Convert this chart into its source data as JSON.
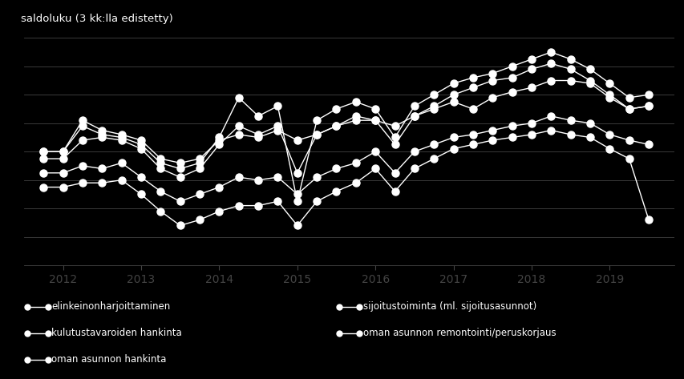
{
  "title": "saldoluku (3 kk:lla edistetty)",
  "background_color": "#000000",
  "text_color": "#ffffff",
  "line_color": "#ffffff",
  "grid_color": "#444444",
  "ylim": [
    -80,
    80
  ],
  "yticks": [
    -80,
    -60,
    -40,
    -20,
    0,
    20,
    40,
    60,
    80
  ],
  "xlabel_years": [
    2012,
    2013,
    2014,
    2015,
    2016,
    2017,
    2018,
    2019
  ],
  "series": [
    {
      "name": "elinkeinonharjoittaminen",
      "data": [
        [
          2011.75,
          0
        ],
        [
          2012.0,
          0
        ],
        [
          2012.25,
          22
        ],
        [
          2012.5,
          15
        ],
        [
          2012.75,
          12
        ],
        [
          2013.0,
          8
        ],
        [
          2013.25,
          -5
        ],
        [
          2013.5,
          -8
        ],
        [
          2013.75,
          -5
        ],
        [
          2014.0,
          8
        ],
        [
          2014.25,
          12
        ],
        [
          2014.5,
          10
        ],
        [
          2014.75,
          15
        ],
        [
          2015.0,
          8
        ],
        [
          2015.25,
          12
        ],
        [
          2015.5,
          18
        ],
        [
          2015.75,
          22
        ],
        [
          2016.0,
          22
        ],
        [
          2016.25,
          18
        ],
        [
          2016.5,
          25
        ],
        [
          2016.75,
          30
        ],
        [
          2017.0,
          35
        ],
        [
          2017.25,
          30
        ],
        [
          2017.5,
          38
        ],
        [
          2017.75,
          42
        ],
        [
          2018.0,
          45
        ],
        [
          2018.25,
          50
        ],
        [
          2018.5,
          50
        ],
        [
          2018.75,
          48
        ],
        [
          2019.0,
          38
        ],
        [
          2019.25,
          30
        ],
        [
          2019.5,
          32
        ]
      ]
    },
    {
      "name": "sijoitustoiminta (ml. sijoitusasunnot)",
      "data": [
        [
          2011.75,
          0
        ],
        [
          2012.0,
          0
        ],
        [
          2012.25,
          18
        ],
        [
          2012.5,
          12
        ],
        [
          2012.75,
          10
        ],
        [
          2013.0,
          5
        ],
        [
          2013.25,
          -8
        ],
        [
          2013.5,
          -12
        ],
        [
          2013.75,
          -8
        ],
        [
          2014.0,
          10
        ],
        [
          2014.25,
          38
        ],
        [
          2014.5,
          25
        ],
        [
          2014.75,
          32
        ],
        [
          2015.0,
          -35
        ],
        [
          2015.25,
          22
        ],
        [
          2015.5,
          30
        ],
        [
          2015.75,
          35
        ],
        [
          2016.0,
          30
        ],
        [
          2016.25,
          10
        ],
        [
          2016.5,
          32
        ],
        [
          2016.75,
          40
        ],
        [
          2017.0,
          48
        ],
        [
          2017.25,
          52
        ],
        [
          2017.5,
          55
        ],
        [
          2017.75,
          60
        ],
        [
          2018.0,
          65
        ],
        [
          2018.25,
          70
        ],
        [
          2018.5,
          65
        ],
        [
          2018.75,
          58
        ],
        [
          2019.0,
          48
        ],
        [
          2019.25,
          38
        ],
        [
          2019.5,
          40
        ]
      ]
    },
    {
      "name": "kulutustavaroiden hankinta",
      "data": [
        [
          2011.75,
          -15
        ],
        [
          2012.0,
          -15
        ],
        [
          2012.25,
          -10
        ],
        [
          2012.5,
          -12
        ],
        [
          2012.75,
          -8
        ],
        [
          2013.0,
          -18
        ],
        [
          2013.25,
          -28
        ],
        [
          2013.5,
          -35
        ],
        [
          2013.75,
          -30
        ],
        [
          2014.0,
          -25
        ],
        [
          2014.25,
          -18
        ],
        [
          2014.5,
          -20
        ],
        [
          2014.75,
          -18
        ],
        [
          2015.0,
          -30
        ],
        [
          2015.25,
          -18
        ],
        [
          2015.5,
          -12
        ],
        [
          2015.75,
          -8
        ],
        [
          2016.0,
          0
        ],
        [
          2016.25,
          -15
        ],
        [
          2016.5,
          0
        ],
        [
          2016.75,
          5
        ],
        [
          2017.0,
          10
        ],
        [
          2017.25,
          12
        ],
        [
          2017.5,
          15
        ],
        [
          2017.75,
          18
        ],
        [
          2018.0,
          20
        ],
        [
          2018.25,
          25
        ],
        [
          2018.5,
          22
        ],
        [
          2018.75,
          20
        ],
        [
          2019.0,
          12
        ],
        [
          2019.25,
          8
        ],
        [
          2019.5,
          5
        ]
      ]
    },
    {
      "name": "oman asunnon remontointi/peruskorjaus",
      "data": [
        [
          2011.75,
          -5
        ],
        [
          2012.0,
          -5
        ],
        [
          2012.25,
          8
        ],
        [
          2012.5,
          10
        ],
        [
          2012.75,
          8
        ],
        [
          2013.0,
          2
        ],
        [
          2013.25,
          -12
        ],
        [
          2013.5,
          -18
        ],
        [
          2013.75,
          -12
        ],
        [
          2014.0,
          5
        ],
        [
          2014.25,
          18
        ],
        [
          2014.5,
          12
        ],
        [
          2014.75,
          18
        ],
        [
          2015.0,
          -15
        ],
        [
          2015.25,
          12
        ],
        [
          2015.5,
          18
        ],
        [
          2015.75,
          25
        ],
        [
          2016.0,
          22
        ],
        [
          2016.25,
          5
        ],
        [
          2016.5,
          25
        ],
        [
          2016.75,
          32
        ],
        [
          2017.0,
          40
        ],
        [
          2017.25,
          45
        ],
        [
          2017.5,
          50
        ],
        [
          2017.75,
          52
        ],
        [
          2018.0,
          58
        ],
        [
          2018.25,
          62
        ],
        [
          2018.5,
          58
        ],
        [
          2018.75,
          50
        ],
        [
          2019.0,
          40
        ],
        [
          2019.25,
          30
        ],
        [
          2019.5,
          32
        ]
      ]
    },
    {
      "name": "oman asunnon hankinta",
      "data": [
        [
          2011.75,
          -25
        ],
        [
          2012.0,
          -25
        ],
        [
          2012.25,
          -22
        ],
        [
          2012.5,
          -22
        ],
        [
          2012.75,
          -20
        ],
        [
          2013.0,
          -30
        ],
        [
          2013.25,
          -42
        ],
        [
          2013.5,
          -52
        ],
        [
          2013.75,
          -48
        ],
        [
          2014.0,
          -42
        ],
        [
          2014.25,
          -38
        ],
        [
          2014.5,
          -38
        ],
        [
          2014.75,
          -35
        ],
        [
          2015.0,
          -52
        ],
        [
          2015.25,
          -35
        ],
        [
          2015.5,
          -28
        ],
        [
          2015.75,
          -22
        ],
        [
          2016.0,
          -12
        ],
        [
          2016.25,
          -28
        ],
        [
          2016.5,
          -12
        ],
        [
          2016.75,
          -5
        ],
        [
          2017.0,
          2
        ],
        [
          2017.25,
          5
        ],
        [
          2017.5,
          8
        ],
        [
          2017.75,
          10
        ],
        [
          2018.0,
          12
        ],
        [
          2018.25,
          15
        ],
        [
          2018.5,
          12
        ],
        [
          2018.75,
          10
        ],
        [
          2019.0,
          2
        ],
        [
          2019.25,
          -5
        ],
        [
          2019.5,
          -48
        ]
      ]
    }
  ],
  "legend_items": [
    [
      "elinkeinonharjoittaminen",
      "sijoitustoiminta (ml. sijoitusasunnot)"
    ],
    [
      "kulutustavaroiden hankinta",
      "oman asunnon remontointi/peruskorjaus"
    ],
    [
      "oman asunnon hankinta",
      ""
    ]
  ]
}
